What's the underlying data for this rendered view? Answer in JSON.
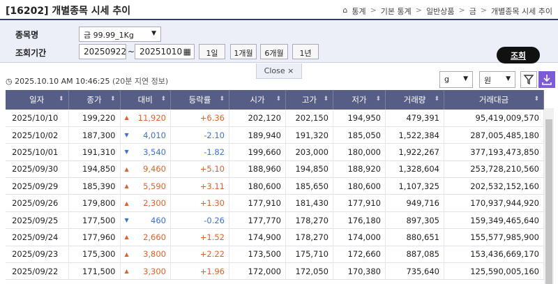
{
  "header": {
    "title": "[16202] 개별종목 시세 추이",
    "breadcrumb": [
      "통계",
      "기본 통계",
      "일반상품",
      "금",
      "개별종목 시세 추이"
    ]
  },
  "filter": {
    "item_label": "종목명",
    "item_value": "금 99.99_1Kg",
    "period_label": "조회기간",
    "date_from": "20250922",
    "date_sep": "~",
    "date_to": "20251010",
    "periods": [
      "1일",
      "1개월",
      "6개월",
      "1년"
    ],
    "search": "조회",
    "close": "Close",
    "close_icon": "×"
  },
  "info": {
    "timestamp": "2025.10.10 AM 10:46:25",
    "delay": "(20분 지연 정보)",
    "unit": "g",
    "currency": "원"
  },
  "table": {
    "columns": [
      "일자",
      "종가",
      "대비",
      "등락률",
      "시가",
      "고가",
      "저가",
      "거래량",
      "거래대금"
    ],
    "rows": [
      [
        "2025/10/10",
        "199,220",
        "▲",
        "11,920",
        "+6.36",
        "202,120",
        "202,150",
        "194,950",
        "479,391",
        "95,419,009,570"
      ],
      [
        "2025/10/02",
        "187,300",
        "▼",
        "4,010",
        "-2.10",
        "189,940",
        "191,320",
        "185,050",
        "1,522,384",
        "287,005,485,180"
      ],
      [
        "2025/10/01",
        "191,310",
        "▼",
        "3,540",
        "-1.82",
        "199,660",
        "203,000",
        "180,000",
        "1,922,267",
        "377,193,473,850"
      ],
      [
        "2025/09/30",
        "194,850",
        "▲",
        "9,460",
        "+5.10",
        "188,960",
        "194,850",
        "188,920",
        "1,328,604",
        "253,728,210,560"
      ],
      [
        "2025/09/29",
        "185,390",
        "▲",
        "5,590",
        "+3.11",
        "180,600",
        "185,650",
        "180,600",
        "1,107,325",
        "202,532,152,160"
      ],
      [
        "2025/09/26",
        "179,800",
        "▲",
        "2,300",
        "+1.30",
        "177,910",
        "181,430",
        "177,910",
        "949,716",
        "170,937,944,920"
      ],
      [
        "2025/09/25",
        "177,500",
        "▼",
        "460",
        "-0.26",
        "177,770",
        "178,270",
        "176,180",
        "897,305",
        "159,349,465,640"
      ],
      [
        "2025/09/24",
        "177,960",
        "▲",
        "2,660",
        "+1.52",
        "174,900",
        "178,270",
        "174,000",
        "880,651",
        "155,577,985,900"
      ],
      [
        "2025/09/23",
        "175,300",
        "▲",
        "3,800",
        "+2.22",
        "173,500",
        "175,710",
        "172,660",
        "887,085",
        "153,436,669,170"
      ],
      [
        "2025/09/22",
        "171,500",
        "▲",
        "3,300",
        "+1.96",
        "172,000",
        "172,050",
        "170,380",
        "735,640",
        "125,590,005,160"
      ]
    ]
  }
}
